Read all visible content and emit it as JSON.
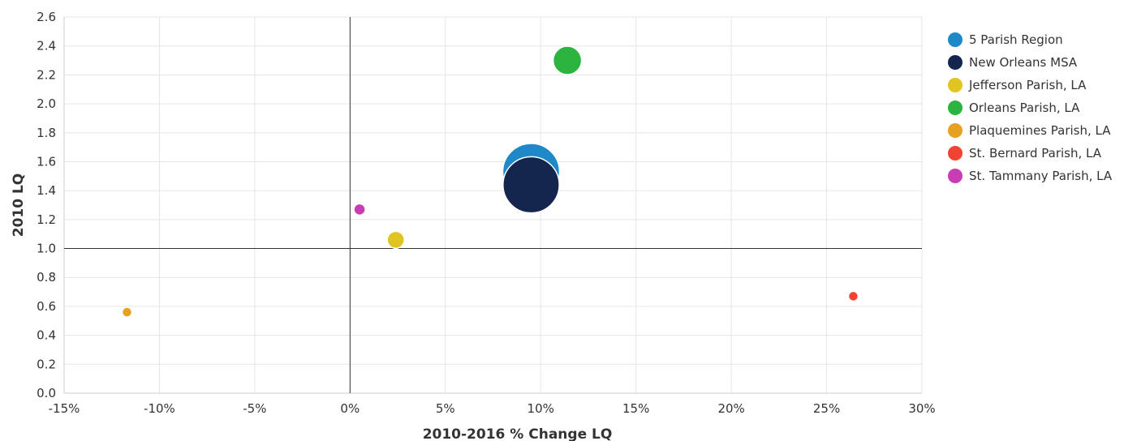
{
  "chart_data": {
    "type": "scatter",
    "subtype": "bubble",
    "xlabel": "2010-2016 % Change LQ",
    "ylabel": "2010 LQ",
    "xlim": [
      -15,
      30
    ],
    "ylim": [
      0,
      2.6
    ],
    "x_ticks": [
      "-15%",
      "-10%",
      "-5%",
      "0%",
      "5%",
      "10%",
      "15%",
      "20%",
      "25%",
      "30%"
    ],
    "x_tick_values": [
      -15,
      -10,
      -5,
      0,
      5,
      10,
      15,
      20,
      25,
      30
    ],
    "y_ticks": [
      "0.0",
      "0.2",
      "0.4",
      "0.6",
      "0.8",
      "1.0",
      "1.2",
      "1.4",
      "1.6",
      "1.8",
      "2.0",
      "2.2",
      "2.4",
      "2.6"
    ],
    "y_tick_values": [
      0,
      0.2,
      0.4,
      0.6,
      0.8,
      1.0,
      1.2,
      1.4,
      1.6,
      1.8,
      2.0,
      2.2,
      2.4,
      2.6
    ],
    "grid": true,
    "reference_lines": {
      "x": 0,
      "y": 1.0
    },
    "legend_position": "right",
    "series": [
      {
        "name": "5 Parish Region",
        "color": "#1f88c9",
        "x": 9.5,
        "y": 1.53,
        "size": 1.0
      },
      {
        "name": "New Orleans MSA",
        "color": "#14264d",
        "x": 9.5,
        "y": 1.44,
        "size": 0.98
      },
      {
        "name": "Jefferson Parish, LA",
        "color": "#e0c422",
        "x": 2.4,
        "y": 1.06,
        "size": 0.09
      },
      {
        "name": "Orleans Parish, LA",
        "color": "#2bb540",
        "x": 11.4,
        "y": 2.3,
        "size": 0.25
      },
      {
        "name": "Plaquemines Parish, LA",
        "color": "#e8a020",
        "x": -11.7,
        "y": 0.56,
        "size": 0.02
      },
      {
        "name": "St. Bernard Parish, LA",
        "color": "#f04334",
        "x": 26.4,
        "y": 0.67,
        "size": 0.02
      },
      {
        "name": "St. Tammany Parish, LA",
        "color": "#c83cb4",
        "x": 0.5,
        "y": 1.27,
        "size": 0.04
      }
    ]
  }
}
